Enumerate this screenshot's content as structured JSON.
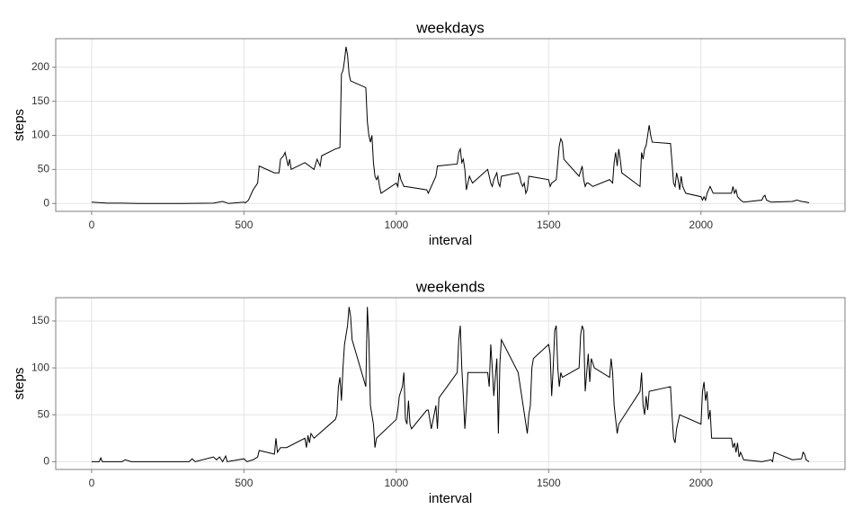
{
  "chart_data": [
    {
      "type": "line",
      "title": "weekdays",
      "x_label": "interval",
      "y_label": "steps",
      "xlim": [
        -117.75,
        2472.75
      ],
      "ylim": [
        -11.5,
        241.9
      ],
      "xticks": [
        0,
        500,
        1000,
        1500,
        2000
      ],
      "yticks": [
        0,
        50,
        100,
        150,
        200
      ],
      "grid": true,
      "series": [
        {
          "color": "#000000",
          "x": [
            0,
            50,
            100,
            150,
            200,
            300,
            400,
            430,
            450,
            500,
            505,
            515,
            530,
            545,
            550,
            600,
            615,
            620,
            630,
            635,
            645,
            650,
            655,
            700,
            730,
            740,
            745,
            750,
            755,
            800,
            815,
            820,
            825,
            830,
            835,
            840,
            845,
            850,
            900,
            905,
            910,
            915,
            920,
            925,
            930,
            935,
            940,
            945,
            950,
            1000,
            1005,
            1010,
            1015,
            1020,
            1025,
            1030,
            1100,
            1105,
            1110,
            1130,
            1135,
            1200,
            1205,
            1210,
            1215,
            1220,
            1225,
            1230,
            1240,
            1250,
            1300,
            1305,
            1310,
            1315,
            1320,
            1330,
            1335,
            1340,
            1345,
            1400,
            1405,
            1410,
            1415,
            1420,
            1425,
            1430,
            1435,
            1500,
            1505,
            1510,
            1525,
            1530,
            1535,
            1540,
            1545,
            1550,
            1600,
            1610,
            1615,
            1620,
            1625,
            1630,
            1645,
            1700,
            1710,
            1715,
            1720,
            1725,
            1730,
            1735,
            1740,
            1800,
            1805,
            1810,
            1815,
            1820,
            1825,
            1830,
            1835,
            1840,
            1900,
            1905,
            1910,
            1915,
            1920,
            1925,
            1930,
            1935,
            1940,
            1950,
            2000,
            2005,
            2010,
            2015,
            2020,
            2030,
            2040,
            2050,
            2100,
            2105,
            2110,
            2115,
            2120,
            2130,
            2140,
            2200,
            2205,
            2210,
            2215,
            2230,
            2300,
            2315,
            2330,
            2345,
            2355
          ],
          "values": [
            2,
            0.5,
            0.5,
            0,
            0,
            0,
            0.5,
            3,
            0,
            2,
            1,
            5,
            20,
            30,
            55,
            45,
            45,
            65,
            70,
            75,
            55,
            65,
            50,
            60,
            50,
            65,
            60,
            55,
            70,
            80,
            82,
            190,
            195,
            210,
            230,
            218,
            190,
            180,
            170,
            120,
            100,
            90,
            100,
            60,
            40,
            35,
            40,
            25,
            15,
            30,
            25,
            45,
            35,
            30,
            25,
            25,
            20,
            15,
            20,
            40,
            55,
            58,
            75,
            80,
            60,
            65,
            50,
            20,
            40,
            30,
            50,
            40,
            30,
            25,
            35,
            45,
            30,
            25,
            40,
            45,
            40,
            30,
            25,
            30,
            15,
            20,
            40,
            35,
            25,
            30,
            35,
            60,
            85,
            95,
            90,
            65,
            40,
            55,
            35,
            25,
            30,
            30,
            25,
            35,
            30,
            60,
            75,
            55,
            80,
            65,
            45,
            25,
            75,
            65,
            80,
            85,
            100,
            115,
            100,
            90,
            88,
            60,
            30,
            25,
            45,
            35,
            20,
            40,
            25,
            15,
            10,
            5,
            10,
            5,
            15,
            25,
            15,
            15,
            15,
            25,
            15,
            20,
            10,
            5,
            2,
            5,
            10,
            12,
            5,
            2,
            3,
            5,
            3,
            2,
            1
          ]
        }
      ]
    },
    {
      "type": "line",
      "title": "weekends",
      "x_label": "interval",
      "y_label": "steps",
      "xlim": [
        -117.75,
        2472.75
      ],
      "ylim": [
        -8.3,
        174.9
      ],
      "xticks": [
        0,
        500,
        1000,
        1500,
        2000
      ],
      "yticks": [
        0,
        50,
        100,
        150
      ],
      "grid": true,
      "series": [
        {
          "color": "#000000",
          "x": [
            0,
            25,
            30,
            35,
            100,
            110,
            130,
            200,
            300,
            320,
            330,
            340,
            400,
            410,
            420,
            430,
            440,
            445,
            500,
            510,
            530,
            545,
            550,
            600,
            605,
            610,
            620,
            640,
            700,
            705,
            710,
            715,
            720,
            730,
            800,
            805,
            810,
            815,
            820,
            825,
            830,
            835,
            840,
            845,
            850,
            855,
            900,
            905,
            910,
            915,
            925,
            930,
            935,
            1000,
            1005,
            1010,
            1015,
            1020,
            1025,
            1030,
            1035,
            1040,
            1045,
            1050,
            1100,
            1105,
            1110,
            1115,
            1130,
            1135,
            1140,
            1200,
            1205,
            1210,
            1215,
            1220,
            1225,
            1230,
            1235,
            1300,
            1305,
            1310,
            1315,
            1320,
            1325,
            1330,
            1335,
            1340,
            1345,
            1400,
            1430,
            1435,
            1440,
            1445,
            1450,
            1500,
            1505,
            1510,
            1515,
            1520,
            1525,
            1530,
            1535,
            1540,
            1545,
            1600,
            1605,
            1610,
            1615,
            1620,
            1625,
            1630,
            1635,
            1640,
            1650,
            1700,
            1705,
            1710,
            1715,
            1720,
            1725,
            1730,
            1800,
            1805,
            1810,
            1815,
            1820,
            1825,
            1830,
            1900,
            1905,
            1910,
            1915,
            1920,
            1930,
            2000,
            2005,
            2010,
            2015,
            2020,
            2025,
            2030,
            2035,
            2100,
            2105,
            2110,
            2115,
            2120,
            2125,
            2130,
            2140,
            2200,
            2230,
            2235,
            2240,
            2300,
            2330,
            2335,
            2340,
            2345,
            2355
          ],
          "values": [
            0,
            0,
            4,
            0,
            0,
            2,
            0,
            0,
            0,
            0,
            3,
            0,
            5,
            2,
            5,
            0,
            6,
            0,
            3,
            0,
            2,
            5,
            12,
            8,
            25,
            10,
            15,
            15,
            25,
            15,
            28,
            20,
            30,
            25,
            45,
            50,
            80,
            90,
            65,
            100,
            125,
            135,
            145,
            165,
            155,
            130,
            80,
            165,
            130,
            60,
            40,
            15,
            25,
            45,
            55,
            70,
            75,
            80,
            95,
            45,
            40,
            65,
            40,
            35,
            55,
            55,
            45,
            35,
            60,
            35,
            68,
            95,
            130,
            145,
            100,
            70,
            35,
            60,
            95,
            95,
            80,
            125,
            100,
            70,
            90,
            110,
            30,
            105,
            130,
            95,
            30,
            50,
            60,
            100,
            110,
            125,
            115,
            70,
            100,
            140,
            145,
            100,
            80,
            95,
            90,
            100,
            135,
            145,
            140,
            75,
            95,
            115,
            85,
            110,
            100,
            90,
            110,
            95,
            60,
            45,
            30,
            40,
            75,
            95,
            60,
            50,
            70,
            55,
            75,
            80,
            50,
            25,
            20,
            35,
            50,
            40,
            75,
            85,
            65,
            75,
            45,
            55,
            25,
            25,
            15,
            20,
            10,
            20,
            5,
            10,
            2,
            0,
            2,
            0,
            10,
            2,
            3,
            10,
            8,
            2,
            0
          ]
        }
      ]
    }
  ]
}
